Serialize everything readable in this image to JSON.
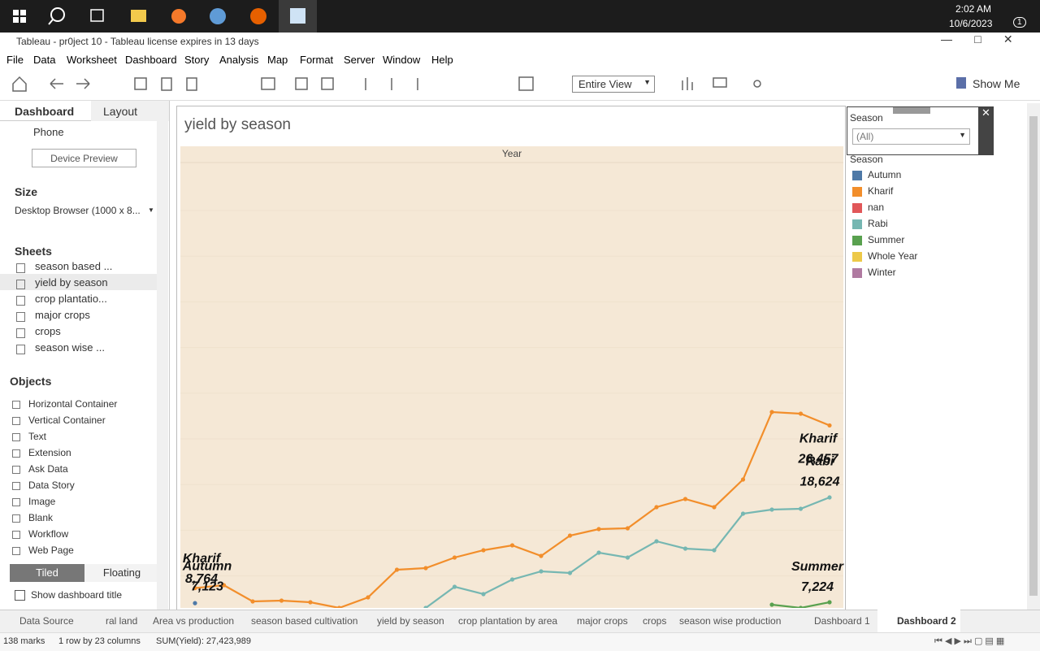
{
  "taskbar": {
    "time": "2:02 AM",
    "date": "10/6/2023",
    "notifications": "1"
  },
  "window": {
    "title": "Tableau - pr0ject 10 - Tableau license expires in 13 days"
  },
  "menu": [
    "File",
    "Data",
    "Worksheet",
    "Dashboard",
    "Story",
    "Analysis",
    "Map",
    "Format",
    "Server",
    "Window",
    "Help"
  ],
  "toolbar": {
    "view": "Entire View",
    "show_me": "Show Me"
  },
  "left_panel": {
    "tabs": [
      "Dashboard",
      "Layout"
    ],
    "device": "Phone",
    "device_preview": "Device Preview",
    "size_heading": "Size",
    "size_value": "Desktop Browser (1000 x 8...",
    "sheets_heading": "Sheets",
    "sheets": [
      "season based ...",
      "yield by season",
      "crop plantatio...",
      "major crops",
      "crops",
      "season wise ..."
    ],
    "objects_heading": "Objects",
    "objects": [
      "Horizontal Container",
      "Vertical Container",
      "Text",
      "Extension",
      "Ask Data",
      "Data Story",
      "Image",
      "Blank",
      "Workflow",
      "Web Page"
    ],
    "layout_modes": [
      "Tiled",
      "Floating"
    ],
    "show_title": "Show dashboard title"
  },
  "filter": {
    "title": "Season",
    "value": "(All)"
  },
  "chart_data": {
    "type": "line",
    "title": "yield by season",
    "column_header": "Year",
    "legend_title": "Season",
    "categories": [
      null,
      null,
      null,
      null,
      null,
      null,
      null,
      null,
      null,
      null,
      null,
      null,
      null,
      null,
      null,
      null,
      null,
      null,
      null,
      null,
      null,
      null,
      null
    ],
    "series": [
      {
        "name": "Autumn",
        "color": "#4e79a7",
        "values": [
          7123,
          null,
          null,
          null,
          null,
          null,
          null,
          null,
          null,
          null,
          null,
          null,
          null,
          null,
          null,
          null,
          null,
          null,
          null,
          null,
          null,
          null,
          null
        ],
        "value_labels": [
          "7,123",
          null,
          null,
          null,
          null,
          null,
          null,
          null,
          null,
          null,
          null,
          null,
          null,
          null,
          null,
          null,
          null,
          null,
          null,
          null,
          null,
          null,
          null
        ]
      },
      {
        "name": "Kharif",
        "color": "#f28e2b",
        "values": [
          8764,
          9080,
          7312,
          7400,
          7224,
          6605,
          7754,
          10760,
          10937,
          12086,
          12882,
          13412,
          12263,
          14473,
          15180,
          15268,
          17567,
          18451,
          17567,
          20572,
          27910,
          27733,
          26457
        ],
        "value_labels": [
          "8,764",
          null,
          null,
          null,
          null,
          null,
          null,
          null,
          null,
          null,
          null,
          null,
          null,
          null,
          null,
          null,
          null,
          null,
          null,
          null,
          null,
          null,
          "26,457"
        ]
      },
      {
        "name": "nan",
        "color": "#e15759",
        "values": [
          null,
          null,
          null,
          null,
          null,
          null,
          null,
          null,
          null,
          null,
          null,
          null,
          null,
          null,
          null,
          null,
          null,
          null,
          null,
          null,
          null,
          null,
          null
        ]
      },
      {
        "name": "Rabi",
        "color": "#76b7b2",
        "values": [
          null,
          null,
          null,
          null,
          null,
          null,
          null,
          null,
          6605,
          8904,
          8108,
          9699,
          10583,
          10406,
          12616,
          12086,
          13854,
          13058,
          12882,
          16860,
          17302,
          17390,
          18624
        ],
        "value_labels": [
          null,
          null,
          null,
          null,
          null,
          null,
          null,
          null,
          null,
          null,
          null,
          null,
          null,
          null,
          null,
          null,
          null,
          null,
          null,
          null,
          null,
          null,
          "18,624"
        ]
      },
      {
        "name": "Summer",
        "color": "#59a14f",
        "values": [
          null,
          null,
          null,
          null,
          null,
          null,
          null,
          null,
          null,
          null,
          null,
          null,
          null,
          null,
          null,
          null,
          null,
          null,
          null,
          null,
          6958,
          6605,
          7224
        ],
        "value_labels": [
          null,
          null,
          null,
          null,
          null,
          null,
          null,
          null,
          null,
          null,
          null,
          null,
          null,
          null,
          null,
          null,
          null,
          null,
          null,
          null,
          null,
          null,
          "7,224"
        ]
      },
      {
        "name": "Whole Year",
        "color": "#edc948",
        "values": [
          null,
          null,
          null,
          null,
          null,
          null,
          null,
          null,
          null,
          null,
          null,
          null,
          null,
          null,
          null,
          null,
          null,
          null,
          null,
          null,
          null,
          null,
          null
        ]
      },
      {
        "name": "Winter",
        "color": "#b07aa1",
        "values": [
          null,
          null,
          null,
          null,
          null,
          null,
          null,
          null,
          null,
          null,
          null,
          null,
          null,
          null,
          null,
          null,
          null,
          null,
          null,
          null,
          null,
          null,
          null
        ]
      }
    ]
  },
  "sheet_tabs": [
    "Data Source",
    "ral land",
    "Area vs production",
    "season based cultivation",
    "yield by season",
    "crop plantation by area",
    "major crops",
    "crops",
    "season wise production",
    "Dashboard 1",
    "Dashboard 2"
  ],
  "status": {
    "marks": "138 marks",
    "size": "1 row by 23 columns",
    "sum": "SUM(Yield): 27,423,989"
  }
}
